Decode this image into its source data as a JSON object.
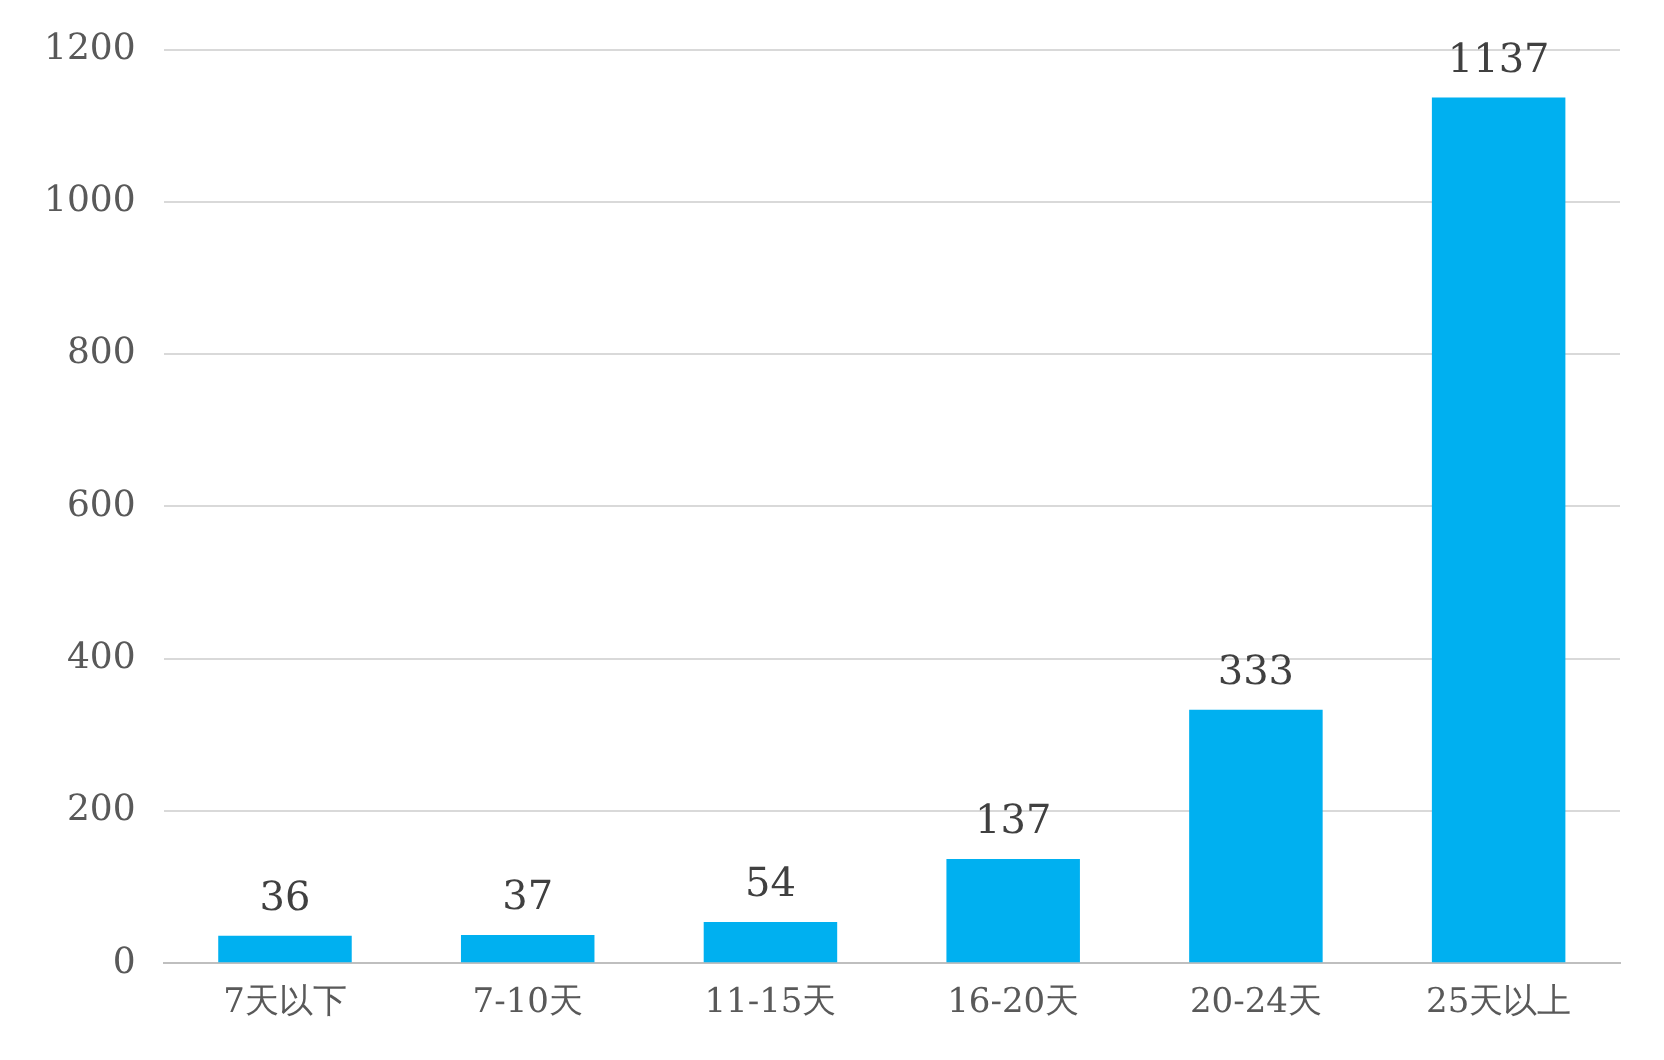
{
  "chart_data": {
    "type": "bar",
    "categories": [
      "7天以下",
      "7-10天",
      "11-15天",
      "16-20天",
      "20-24天",
      "25天以上"
    ],
    "values": [
      36,
      37,
      54,
      137,
      333,
      1137
    ],
    "color": "#00b0f0",
    "ylim": [
      0,
      1200
    ],
    "yticks": [
      0,
      200,
      400,
      600,
      800,
      1000,
      1200
    ],
    "grid": "y",
    "data_labels": true,
    "legend": false
  }
}
